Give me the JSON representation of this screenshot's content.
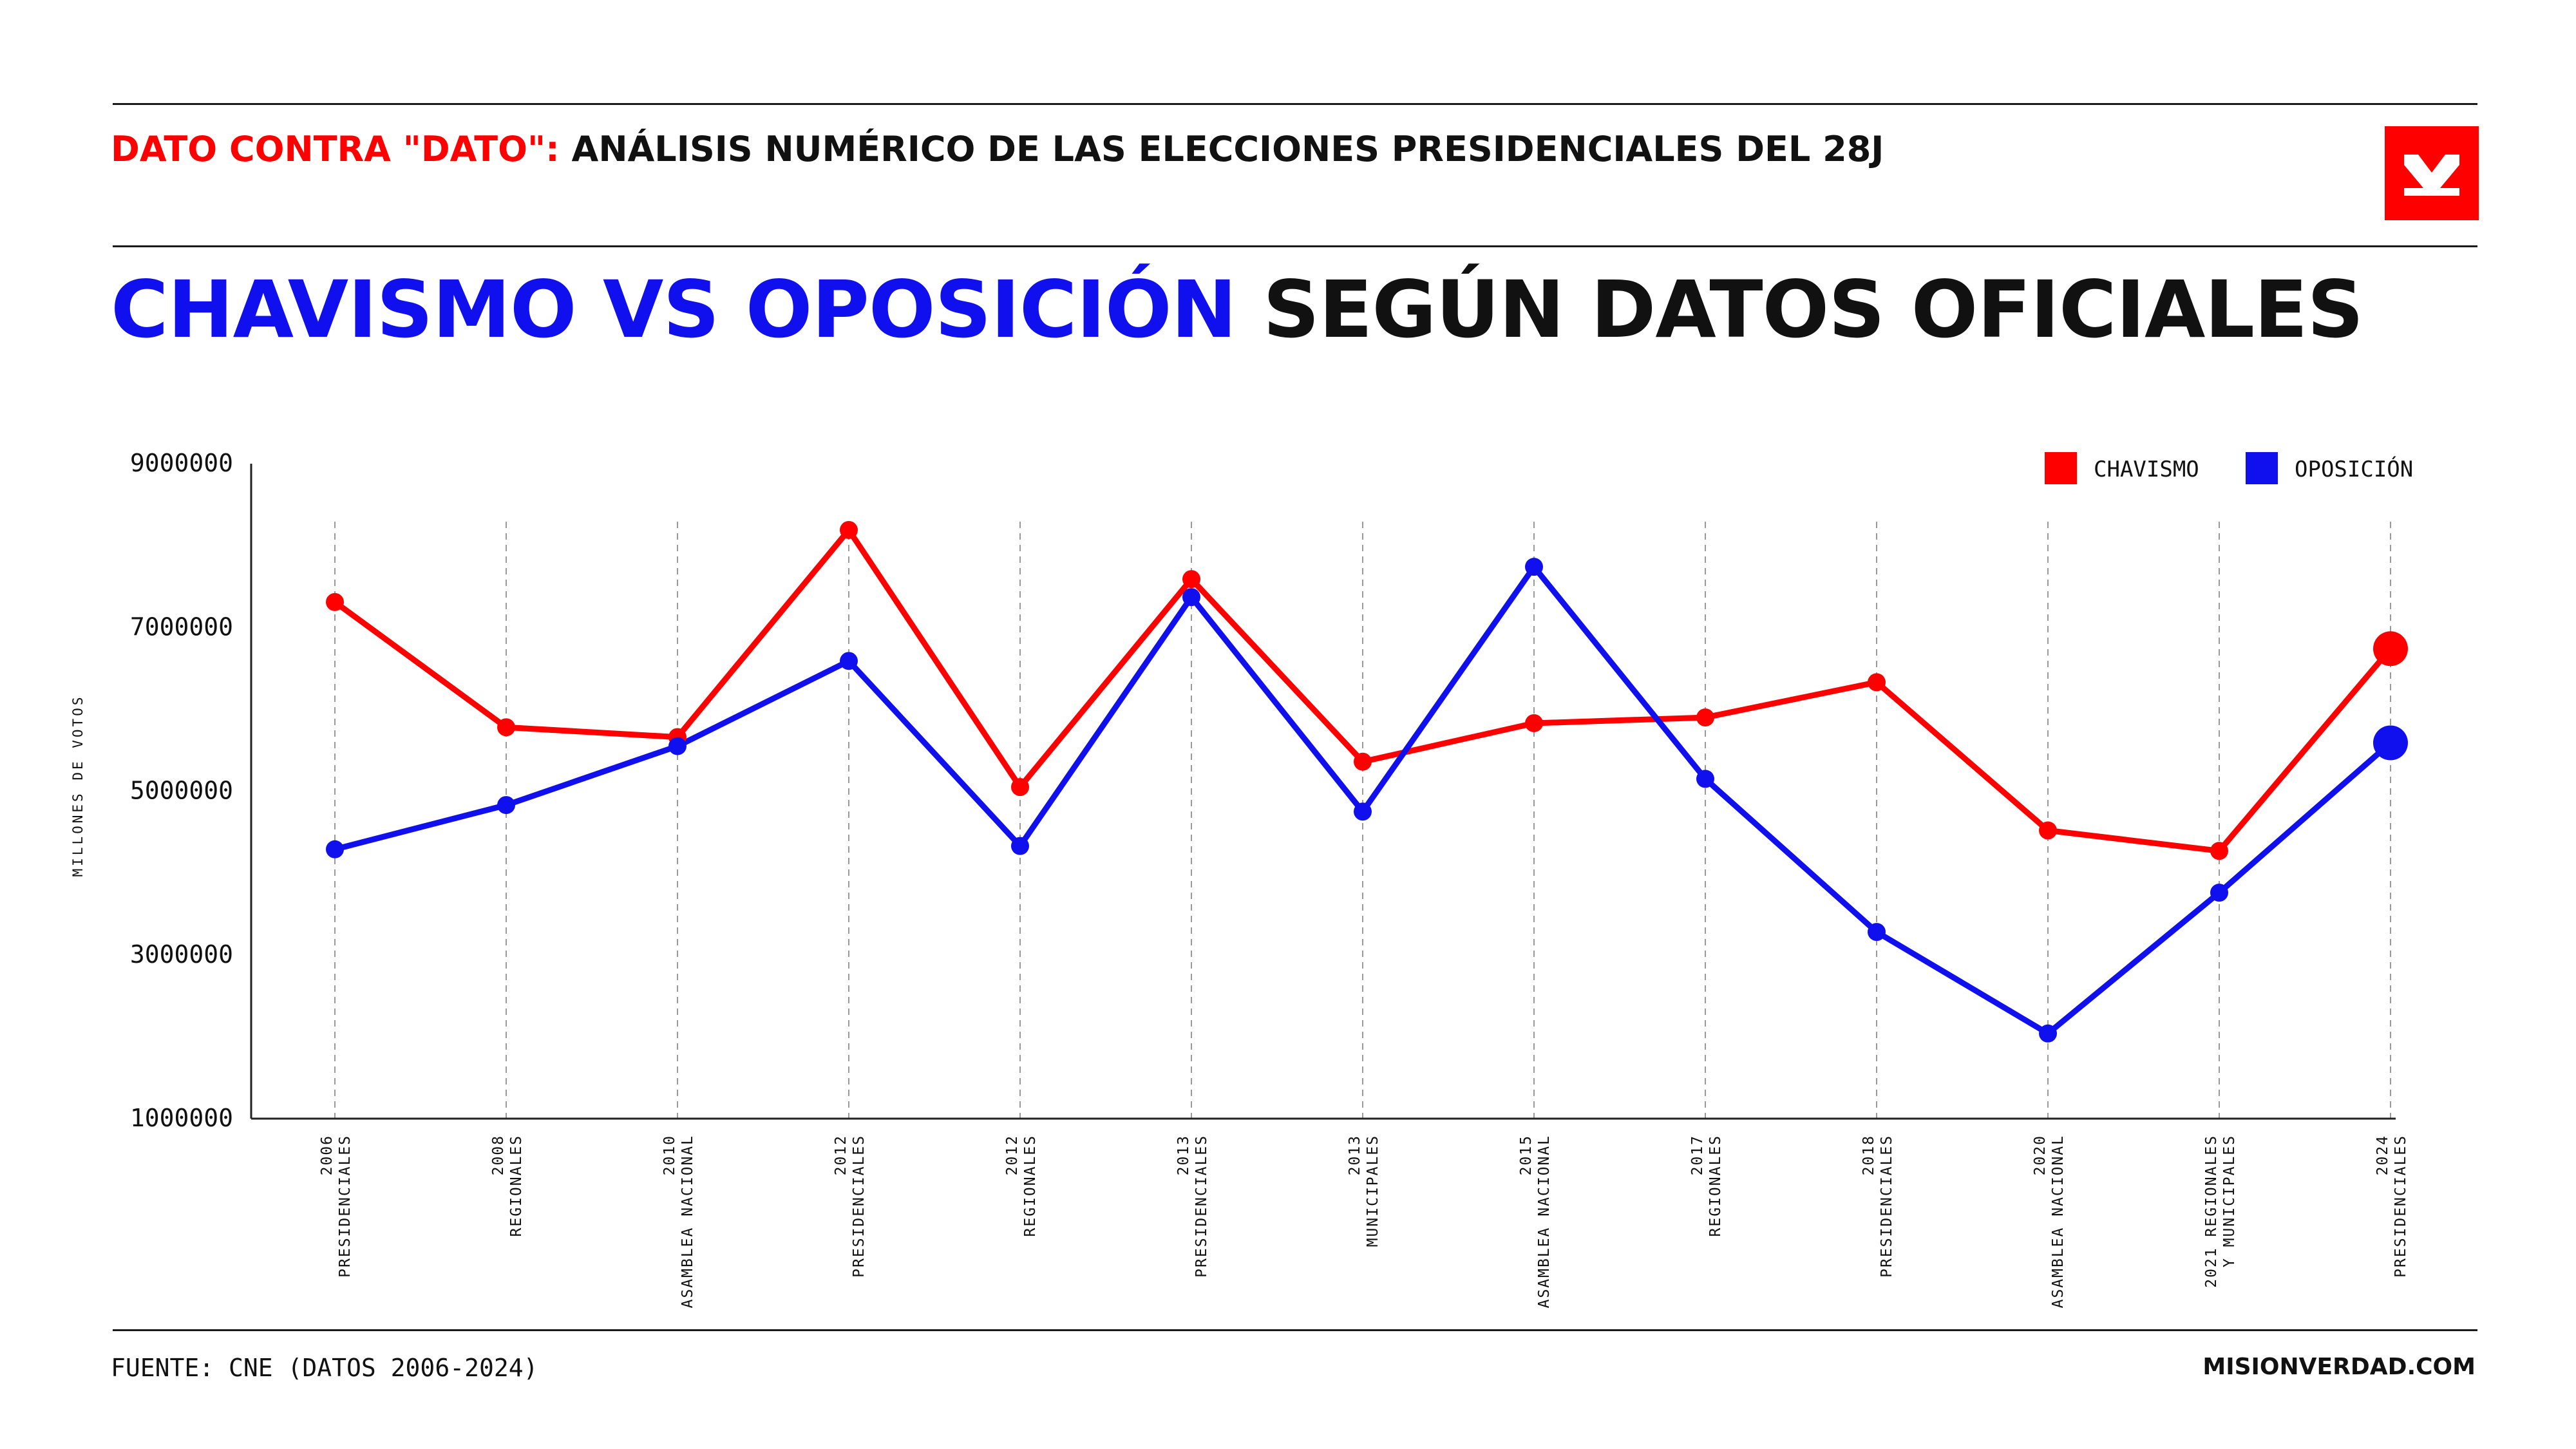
{
  "header": {
    "kicker_red": "DATO CONTRA \"DATO\":",
    "kicker_black": " ANÁLISIS NUMÉRICO DE LAS ELECCIONES PRESIDENCIALES DEL 28J",
    "logo_icon": "misionverdad-logo-icon"
  },
  "headline": {
    "blue": "CHAVISMO VS OPOSICIÓN",
    "black": " SEGÚN DATOS OFICIALES"
  },
  "footer": {
    "source": "FUENTE: CNE (DATOS 2006-2024)",
    "site": "MISIONVERDAD.COM"
  },
  "colors": {
    "chavismo": "#ff0000",
    "oposicion": "#1010ee",
    "accent_red": "#ff0000"
  },
  "chart_data": {
    "type": "line",
    "title": "",
    "ylabel": "MILLONES DE VOTOS",
    "xlabel": "",
    "ylim": [
      1000000,
      9000000
    ],
    "yticks": [
      "1000000",
      "3000000",
      "5000000",
      "7000000",
      "9000000"
    ],
    "grid": "vertical dashed lines at each category",
    "legend_position": "top-right",
    "categories": [
      [
        "2006",
        "PRESIDENCIALES"
      ],
      [
        "2008",
        "REGIONALES"
      ],
      [
        "2010",
        "ASAMBLEA NACIONAL"
      ],
      [
        "2012",
        "PRESIDENCIALES"
      ],
      [
        "2012",
        "REGIONALES"
      ],
      [
        "2013",
        "PRESIDENCIALES"
      ],
      [
        "2013",
        "MUNICIPALES"
      ],
      [
        "2015",
        "ASAMBLEA NACIONAL"
      ],
      [
        "2017",
        "REGIONALES"
      ],
      [
        "2018",
        "PRESIDENCIALES"
      ],
      [
        "2020",
        "ASAMBLEA NACIONAL"
      ],
      [
        "2021 REGIONALES",
        "Y MUNICIPALES"
      ],
      [
        "2024",
        "PRESIDENCIALES"
      ]
    ],
    "series": [
      {
        "name": "CHAVISMO",
        "color": "#ff0000",
        "values": [
          7310000,
          5780000,
          5660000,
          8190000,
          5050000,
          7590000,
          5360000,
          5830000,
          5900000,
          6330000,
          4520000,
          4270000,
          6740000
        ]
      },
      {
        "name": "OPOSICIÓN",
        "color": "#1010ee",
        "values": [
          4290000,
          4830000,
          5550000,
          6590000,
          4330000,
          7370000,
          4750000,
          7740000,
          5150000,
          3280000,
          2040000,
          3760000,
          5590000
        ]
      }
    ]
  }
}
